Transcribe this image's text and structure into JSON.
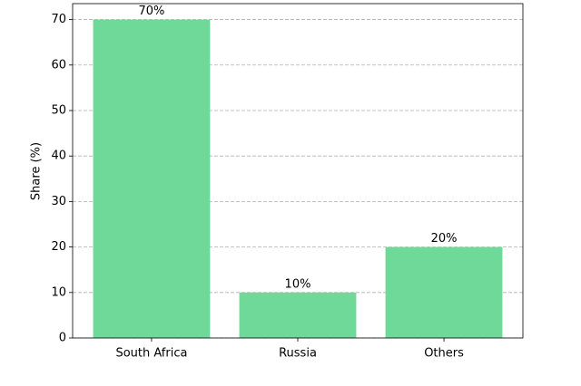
{
  "chart_data": {
    "type": "bar",
    "categories": [
      "South Africa",
      "Russia",
      "Others"
    ],
    "values": [
      70,
      10,
      20
    ],
    "value_labels": [
      "70%",
      "10%",
      "20%"
    ],
    "color": "#6fd99a",
    "ylabel": "Share (%)",
    "ylim": [
      0,
      73.5
    ],
    "yticks": [
      0,
      10,
      20,
      30,
      40,
      50,
      60,
      70
    ],
    "grid": true
  }
}
